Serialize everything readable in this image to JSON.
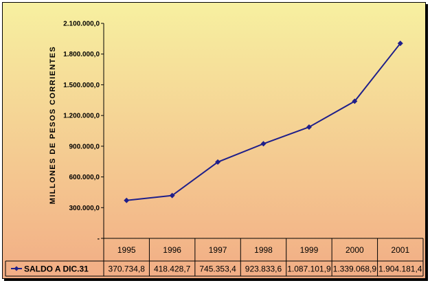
{
  "colors": {
    "plot_gradient_top": "#f7f0a0",
    "plot_gradient_bottom": "#f2ad85",
    "line": "#1f1f8a",
    "grid": "#000000"
  },
  "chart_data": {
    "type": "line",
    "title": "",
    "xlabel": "",
    "ylabel": "MILLONES DE PESOS CORRIENTES",
    "ylim": [
      0,
      2100000
    ],
    "ytick_values": [
      0,
      300000,
      600000,
      900000,
      1200000,
      1500000,
      1800000,
      2100000
    ],
    "ytick_labels": [
      "-",
      "300.000,0",
      "600.000,0",
      "900.000,0",
      "1.200.000,0",
      "1.500.000,0",
      "1.800.000,0",
      "2.100.000,0"
    ],
    "categories": [
      "1995",
      "1996",
      "1997",
      "1998",
      "1999",
      "2000",
      "2001"
    ],
    "series": [
      {
        "name": "SALDO A DIC.31",
        "values": [
          370734.8,
          418428.7,
          745353.4,
          923833.6,
          1087101.9,
          1339068.9,
          1904181.4
        ],
        "value_labels": [
          "370.734,8",
          "418.428,7",
          "745.353,4",
          "923.833,6",
          "1.087.101,9",
          "1.339.068,9",
          "1.904.181,4"
        ]
      }
    ],
    "grid": false,
    "legend": "data-table"
  }
}
